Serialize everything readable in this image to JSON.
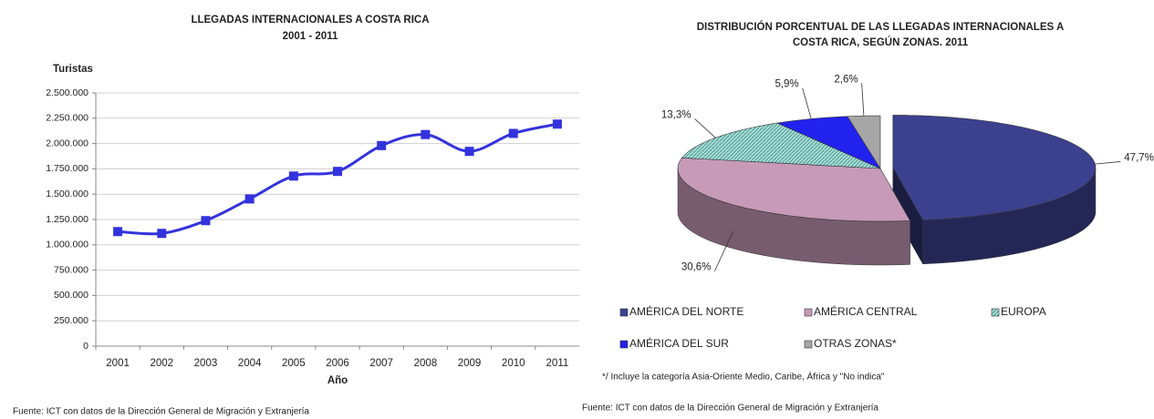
{
  "chart_data": [
    {
      "type": "line",
      "title": "LLEGADAS INTERNACIONALES A COSTA RICA",
      "subtitle": "2001 - 2011",
      "y_label": "Turistas",
      "x_label": "Año",
      "categories": [
        "2001",
        "2002",
        "2003",
        "2004",
        "2005",
        "2006",
        "2007",
        "2008",
        "2009",
        "2010",
        "2011"
      ],
      "values": [
        1131000,
        1113000,
        1239000,
        1453000,
        1679000,
        1725000,
        1980000,
        2089000,
        1923000,
        2100000,
        2192000
      ],
      "color": "#3333dd",
      "ylim": [
        0,
        2500000
      ],
      "yticks": [
        0,
        {
          "value": 250000,
          "label": "250.000"
        },
        {
          "value": 500000,
          "label": "500.000"
        },
        {
          "value": 750000,
          "label": "750.000"
        },
        {
          "value": 1000000,
          "label": "1.000.000"
        },
        {
          "value": 1250000,
          "label": "1.250.000"
        },
        {
          "value": 1500000,
          "label": "1.500.000"
        },
        {
          "value": 1750000,
          "label": "1.750.000"
        },
        {
          "value": 2000000,
          "label": "2.000.000"
        },
        {
          "value": 2250000,
          "label": "2.250.000"
        },
        {
          "value": 2500000,
          "label": "2.500.000"
        }
      ],
      "grid": true,
      "source": "Fuente: ICT con datos de la Dirección General de Migración y Extranjería"
    },
    {
      "type": "pie",
      "title": "DISTRIBUCIÓN PORCENTUAL DE LAS LLEGADAS INTERNACIONALES A COSTA RICA, SEGÚN ZONAS. 2011",
      "categories": [
        "AMÉRICA DEL NORTE",
        "AMÉRICA CENTRAL",
        "EUROPA",
        "AMÉRICA DEL SUR",
        "OTRAS ZONAS*"
      ],
      "values": [
        47.7,
        30.6,
        13.3,
        5.9,
        2.6
      ],
      "value_labels": [
        "47,7%",
        "30,6%",
        "13,3%",
        "5,9%",
        "2,6%"
      ],
      "colors": [
        "#3c418f",
        "#c79ab8",
        "#a8dcd6",
        "#2222ee",
        "#a6a6a6"
      ],
      "note": "*/ Incluye la categoría Asia-Oriente Medio, Caribe, África y \"No indica\"",
      "source": "Fuente: ICT con datos de la Dirección General de Migración y Extranjería"
    }
  ]
}
